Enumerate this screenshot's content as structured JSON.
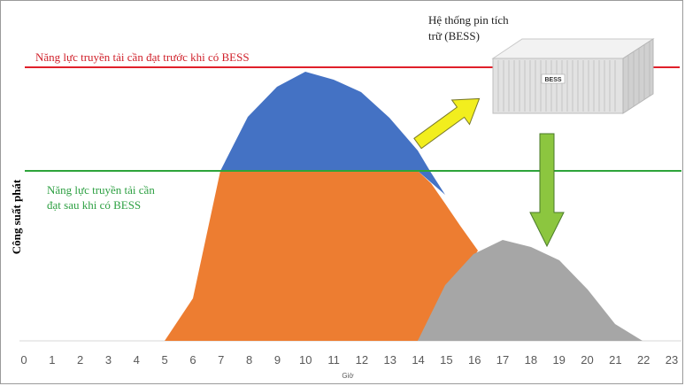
{
  "y_label": "Công suất phát",
  "x_label": "Giờ",
  "x_ticks": [
    "0",
    "1",
    "2",
    "3",
    "4",
    "5",
    "6",
    "7",
    "8",
    "9",
    "10",
    "11",
    "12",
    "13",
    "14",
    "15",
    "16",
    "17",
    "18",
    "19",
    "20",
    "21",
    "22",
    "23"
  ],
  "red_line_label": "Năng lực truyền tải cần đạt trước khi có BESS",
  "green_line_label": [
    "Năng lực truyền tải cần",
    "đạt sau khi có BESS"
  ],
  "bess_label": [
    "Hệ thống pin tích",
    "trữ (BESS)"
  ],
  "container_text": "BESS",
  "colors": {
    "red_line": "#e0202a",
    "green_line": "#2ea43a",
    "blue_area": "#4472c4",
    "orange_area": "#ed7d31",
    "gray_area": "#a6a6a6",
    "yellow_arrow": "#f2ee1e",
    "green_arrow": "#8cc63f"
  }
}
